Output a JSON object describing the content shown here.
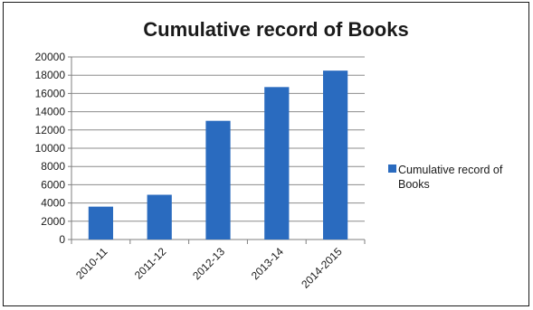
{
  "chart_data": {
    "type": "bar",
    "title": "Cumulative record of Books",
    "xlabel": "",
    "ylabel": "",
    "categories": [
      "2010-11",
      "2011-12",
      "2012-13",
      "2013-14",
      "2014-2015"
    ],
    "series": [
      {
        "name": "Cumulative record of Books",
        "values": [
          3600,
          4900,
          13000,
          16700,
          18500
        ]
      }
    ],
    "ylim": [
      0,
      20000
    ],
    "yticks": [
      0,
      2000,
      4000,
      6000,
      8000,
      10000,
      12000,
      14000,
      16000,
      18000,
      20000
    ],
    "grid": true,
    "legend": "right",
    "colors": {
      "bar": "#2a6bbf",
      "grid": "#8c8c8c",
      "axis": "#7f7f7f"
    }
  }
}
